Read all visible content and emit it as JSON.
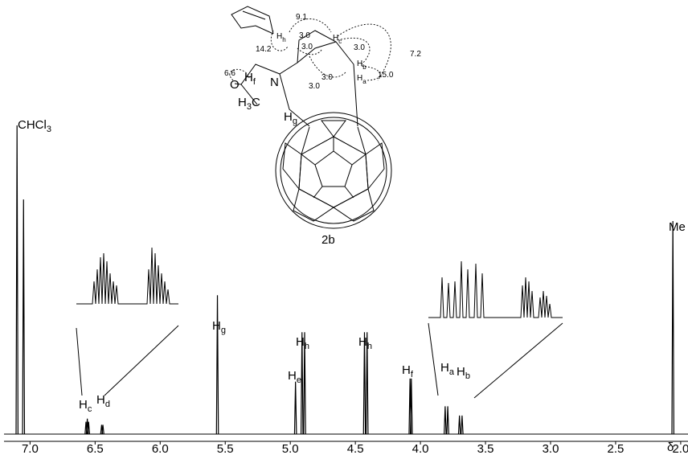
{
  "chart_data": {
    "type": "spectrum",
    "x_label": "δ",
    "xlim": [
      7.2,
      1.95
    ],
    "xticks": [
      {
        "value": 7,
        "label": "7.0"
      },
      6.5,
      {
        "value": 6,
        "label": "6.0"
      },
      5.5,
      {
        "value": 5,
        "label": "5.0"
      },
      4.5,
      {
        "value": 4,
        "label": "4.0"
      },
      3.5,
      {
        "value": 3,
        "label": "3.0"
      },
      2.5,
      {
        "value": 2,
        "label": "2.0"
      }
    ],
    "color": "#000000",
    "x": [
      7.1,
      7.05,
      6.57,
      6.56,
      6.55,
      6.45,
      6.44,
      5.56,
      4.96,
      4.91,
      4.89,
      4.43,
      4.41,
      4.08,
      4.07,
      3.81,
      3.79,
      3.7,
      3.68,
      2.06
    ],
    "values": [
      100,
      76,
      4,
      5,
      4,
      3,
      3,
      45,
      17,
      33,
      33,
      33,
      33,
      18,
      18,
      9,
      9,
      6,
      6,
      69
    ],
    "annotations": [
      {
        "text": "CHCl",
        "sub": "3"
      },
      {
        "text": "H",
        "sub": "c"
      },
      {
        "text": "H",
        "sub": "d"
      },
      {
        "text": "H",
        "sub": "g"
      },
      {
        "text": "H",
        "sub": "e"
      },
      {
        "text": "H",
        "sub": "h"
      },
      {
        "text": "H",
        "sub": "h"
      },
      {
        "text": "H",
        "sub": "f"
      },
      {
        "text": "H",
        "sub": "a"
      },
      {
        "text": "H",
        "sub": "b"
      },
      {
        "text": "Me"
      }
    ],
    "structure": {
      "label": "2b",
      "couplings": [
        "14.2",
        "9.1",
        "3.0",
        "3.0",
        "3.0",
        "7.2",
        "15.0",
        "3.0",
        "3.0",
        "6.6"
      ],
      "atoms": [
        {
          "text": "H",
          "sub": "f"
        },
        {
          "text": "O"
        },
        {
          "text": "N"
        },
        {
          "text": "H",
          "sub": "3",
          "tail": "C"
        },
        {
          "text": "H",
          "sub": "g"
        },
        {
          "text": "H",
          "sub": "h"
        },
        {
          "text": "H",
          "sub": "c"
        },
        {
          "text": "H",
          "sub": "b"
        },
        {
          "text": "H",
          "sub": "a"
        }
      ]
    }
  }
}
